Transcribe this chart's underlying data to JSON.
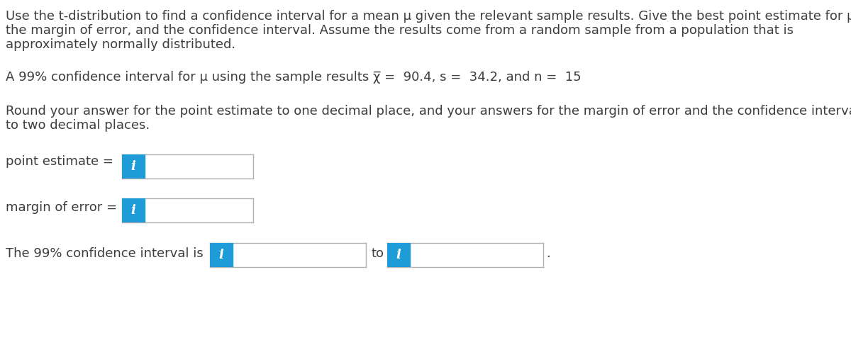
{
  "bg_color": "#ffffff",
  "text_color": "#3d3d3d",
  "blue_color": "#1e9cd7",
  "border_color": "#b0b0b0",
  "para1a": "Use the t-distribution to find a confidence interval for a mean μ given the relevant sample results. Give the best point estimate for μ,",
  "para1b": "the margin of error, and the confidence interval. Assume the results come from a random sample from a population that is",
  "para1c": "approximately normally distributed.",
  "para2": "A 99% confidence interval for μ using the sample results χ̅ =  90.4, s =  34.2, and n =  15",
  "para3a": "Round your answer for the point estimate to one decimal place, and your answers for the margin of error and the confidence interval",
  "para3b": "to two decimal places.",
  "label1": "point estimate = ",
  "label2": "margin of error = ",
  "label3": "The 99% confidence interval is",
  "label_to": "to",
  "icon_text": "i",
  "font_size_main": 13.0,
  "top_line_color": "#cccccc"
}
